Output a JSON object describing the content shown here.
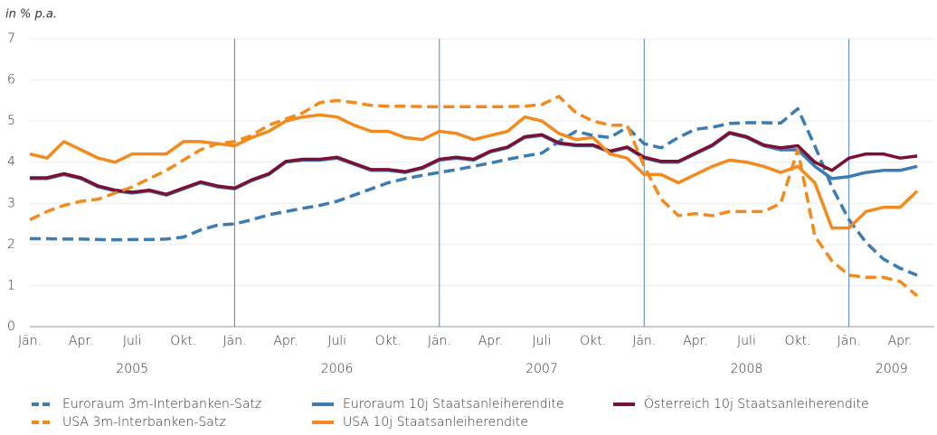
{
  "chart_data": {
    "type": "line",
    "y_axis_label": "in % p.a.",
    "x": [
      "2005-01",
      "2005-02",
      "2005-03",
      "2005-04",
      "2005-05",
      "2005-06",
      "2005-07",
      "2005-08",
      "2005-09",
      "2005-10",
      "2005-11",
      "2005-12",
      "2006-01",
      "2006-02",
      "2006-03",
      "2006-04",
      "2006-05",
      "2006-06",
      "2006-07",
      "2006-08",
      "2006-09",
      "2006-10",
      "2006-11",
      "2006-12",
      "2007-01",
      "2007-02",
      "2007-03",
      "2007-04",
      "2007-05",
      "2007-06",
      "2007-07",
      "2007-08",
      "2007-09",
      "2007-10",
      "2007-11",
      "2007-12",
      "2008-01",
      "2008-02",
      "2008-03",
      "2008-04",
      "2008-05",
      "2008-06",
      "2008-07",
      "2008-08",
      "2008-09",
      "2008-10",
      "2008-11",
      "2008-12",
      "2009-01",
      "2009-02",
      "2009-03",
      "2009-04",
      "2009-05"
    ],
    "xlim": [
      "2005-01",
      "2009-06"
    ],
    "xticks": [
      {
        "value": "2005-01",
        "label": "Jän."
      },
      {
        "value": "2005-04",
        "label": "Apr."
      },
      {
        "value": "2005-07",
        "label": "Juli"
      },
      {
        "value": "2005-10",
        "label": "Okt."
      },
      {
        "value": "2006-01",
        "label": "Jän."
      },
      {
        "value": "2006-04",
        "label": "Apr."
      },
      {
        "value": "2006-07",
        "label": "Juli"
      },
      {
        "value": "2006-10",
        "label": "Okt."
      },
      {
        "value": "2007-01",
        "label": "Jän."
      },
      {
        "value": "2007-04",
        "label": "Apr."
      },
      {
        "value": "2007-07",
        "label": "Juli"
      },
      {
        "value": "2007-10",
        "label": "Okt."
      },
      {
        "value": "2008-01",
        "label": "Jän."
      },
      {
        "value": "2008-04",
        "label": "Apr."
      },
      {
        "value": "2008-07",
        "label": "Juli"
      },
      {
        "value": "2008-10",
        "label": "Okt."
      },
      {
        "value": "2009-01",
        "label": "Jän."
      },
      {
        "value": "2009-04",
        "label": "Apr."
      }
    ],
    "years": [
      "2005",
      "2006",
      "2007",
      "2008",
      "2009"
    ],
    "ylim": [
      0,
      7
    ],
    "yticks": [
      0,
      1,
      2,
      3,
      4,
      5,
      6,
      7
    ],
    "grid": true,
    "series": [
      {
        "name": "Euroraum 3m-Interbanken-Satz",
        "color": "#3b7db3",
        "style": "dashed",
        "values": [
          2.14,
          2.14,
          2.13,
          2.13,
          2.12,
          2.11,
          2.12,
          2.12,
          2.13,
          2.18,
          2.35,
          2.47,
          2.5,
          2.6,
          2.72,
          2.8,
          2.88,
          2.95,
          3.05,
          3.2,
          3.35,
          3.5,
          3.6,
          3.68,
          3.75,
          3.82,
          3.9,
          3.98,
          4.07,
          4.15,
          4.22,
          4.5,
          4.75,
          4.65,
          4.6,
          4.85,
          4.45,
          4.35,
          4.6,
          4.8,
          4.85,
          4.94,
          4.96,
          4.96,
          4.95,
          5.3,
          4.4,
          3.4,
          2.6,
          2.05,
          1.65,
          1.42,
          1.25
        ]
      },
      {
        "name": "Euroraum 10j Staatsanleiherendite",
        "color": "#3b7db3",
        "style": "solid",
        "values": [
          3.6,
          3.6,
          3.7,
          3.6,
          3.4,
          3.3,
          3.25,
          3.3,
          3.2,
          3.35,
          3.5,
          3.4,
          3.35,
          3.55,
          3.7,
          4.0,
          4.05,
          4.05,
          4.1,
          3.95,
          3.8,
          3.8,
          3.75,
          3.85,
          4.05,
          4.1,
          4.05,
          4.25,
          4.35,
          4.6,
          4.65,
          4.45,
          4.4,
          4.4,
          4.25,
          4.35,
          4.1,
          4.0,
          4.0,
          4.2,
          4.4,
          4.7,
          4.6,
          4.4,
          4.3,
          4.3,
          3.9,
          3.6,
          3.65,
          3.75,
          3.8,
          3.8,
          3.9
        ]
      },
      {
        "name": "Österreich 10j Staatsanleiherendite",
        "color": "#7a1034",
        "style": "solid",
        "values": [
          3.62,
          3.62,
          3.72,
          3.62,
          3.42,
          3.32,
          3.27,
          3.32,
          3.22,
          3.37,
          3.52,
          3.42,
          3.37,
          3.57,
          3.72,
          4.02,
          4.07,
          4.07,
          4.12,
          3.97,
          3.82,
          3.82,
          3.77,
          3.87,
          4.07,
          4.12,
          4.07,
          4.27,
          4.37,
          4.62,
          4.67,
          4.47,
          4.42,
          4.42,
          4.27,
          4.37,
          4.12,
          4.02,
          4.02,
          4.22,
          4.42,
          4.72,
          4.62,
          4.42,
          4.35,
          4.4,
          4.0,
          3.8,
          4.1,
          4.2,
          4.2,
          4.1,
          4.15
        ]
      },
      {
        "name": "USA 3m-Interbanken-Satz",
        "color": "#f28a1e",
        "style": "dashed",
        "values": [
          2.6,
          2.8,
          2.95,
          3.05,
          3.1,
          3.25,
          3.4,
          3.6,
          3.8,
          4.05,
          4.3,
          4.45,
          4.5,
          4.65,
          4.9,
          5.05,
          5.2,
          5.45,
          5.5,
          5.45,
          5.38,
          5.36,
          5.36,
          5.35,
          5.35,
          5.35,
          5.35,
          5.35,
          5.35,
          5.36,
          5.4,
          5.6,
          5.2,
          5.0,
          4.9,
          4.9,
          3.9,
          3.1,
          2.7,
          2.75,
          2.7,
          2.8,
          2.8,
          2.8,
          3.0,
          4.3,
          2.2,
          1.6,
          1.25,
          1.2,
          1.2,
          1.1,
          0.75
        ]
      },
      {
        "name": "USA 10j Staatsanleiherendite",
        "color": "#f28a1e",
        "style": "solid",
        "values": [
          4.2,
          4.1,
          4.5,
          4.3,
          4.1,
          4.0,
          4.2,
          4.2,
          4.2,
          4.5,
          4.5,
          4.45,
          4.4,
          4.6,
          4.75,
          5.0,
          5.1,
          5.15,
          5.1,
          4.9,
          4.75,
          4.75,
          4.6,
          4.55,
          4.75,
          4.7,
          4.55,
          4.65,
          4.75,
          5.1,
          5.0,
          4.7,
          4.55,
          4.6,
          4.2,
          4.1,
          3.7,
          3.7,
          3.5,
          3.7,
          3.9,
          4.05,
          4.0,
          3.9,
          3.75,
          3.9,
          3.5,
          2.4,
          2.4,
          2.8,
          2.9,
          2.9,
          3.3
        ]
      }
    ]
  }
}
